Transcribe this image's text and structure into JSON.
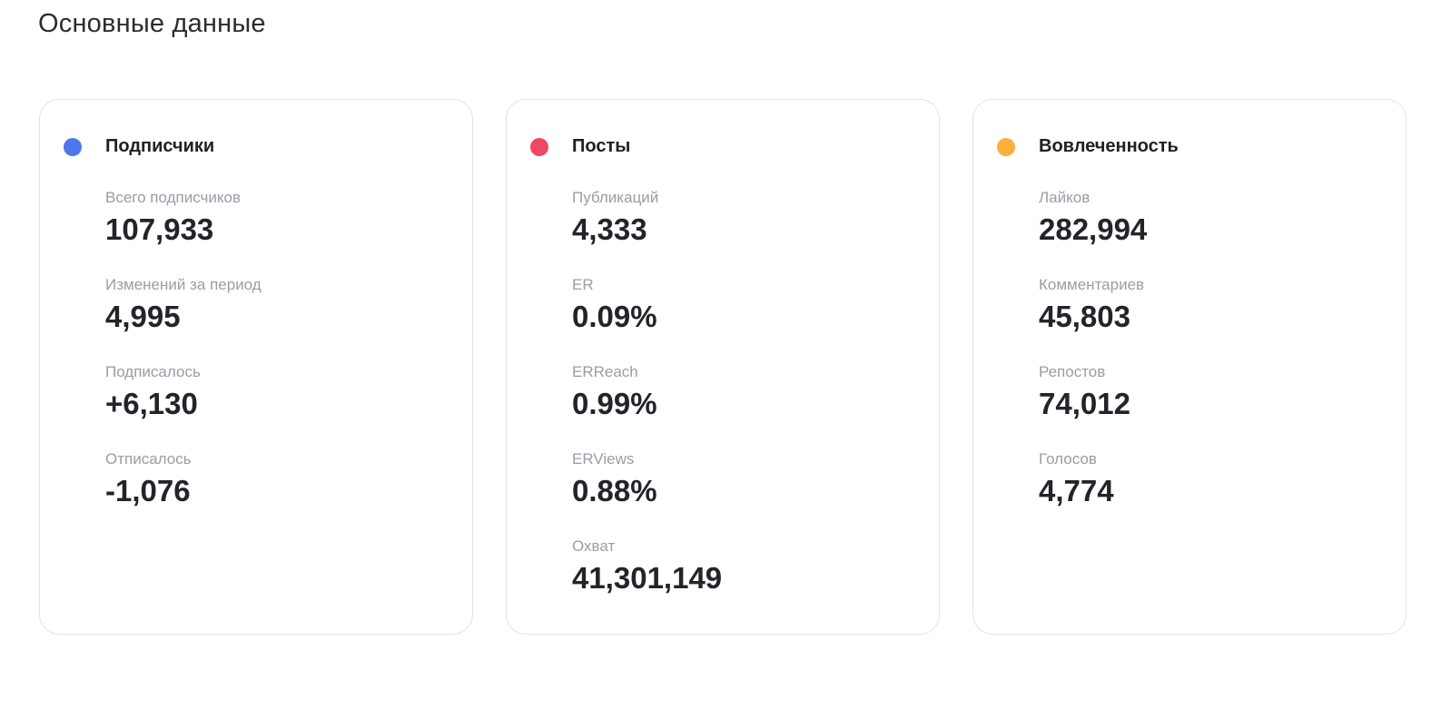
{
  "page": {
    "title": "Основные данные"
  },
  "cards": [
    {
      "title": "Подписчики",
      "dot_color": "#4f76ec",
      "metrics": [
        {
          "label": "Всего подписчиков",
          "value": "107,933"
        },
        {
          "label": "Изменений за период",
          "value": "4,995"
        },
        {
          "label": "Подписалось",
          "value": "+6,130"
        },
        {
          "label": "Отписалось",
          "value": "-1,076"
        }
      ]
    },
    {
      "title": "Посты",
      "dot_color": "#ef4866",
      "metrics": [
        {
          "label": "Публикаций",
          "value": "4,333"
        },
        {
          "label": "ER",
          "value": "0.09%"
        },
        {
          "label": "ERReach",
          "value": "0.99%"
        },
        {
          "label": "ERViews",
          "value": "0.88%"
        },
        {
          "label": "Охват",
          "value": "41,301,149"
        }
      ]
    },
    {
      "title": "Вовлеченность",
      "dot_color": "#fcb03c",
      "metrics": [
        {
          "label": "Лайков",
          "value": "282,994"
        },
        {
          "label": "Комментариев",
          "value": "45,803"
        },
        {
          "label": "Репостов",
          "value": "74,012"
        },
        {
          "label": "Голосов",
          "value": "4,774"
        }
      ]
    }
  ]
}
